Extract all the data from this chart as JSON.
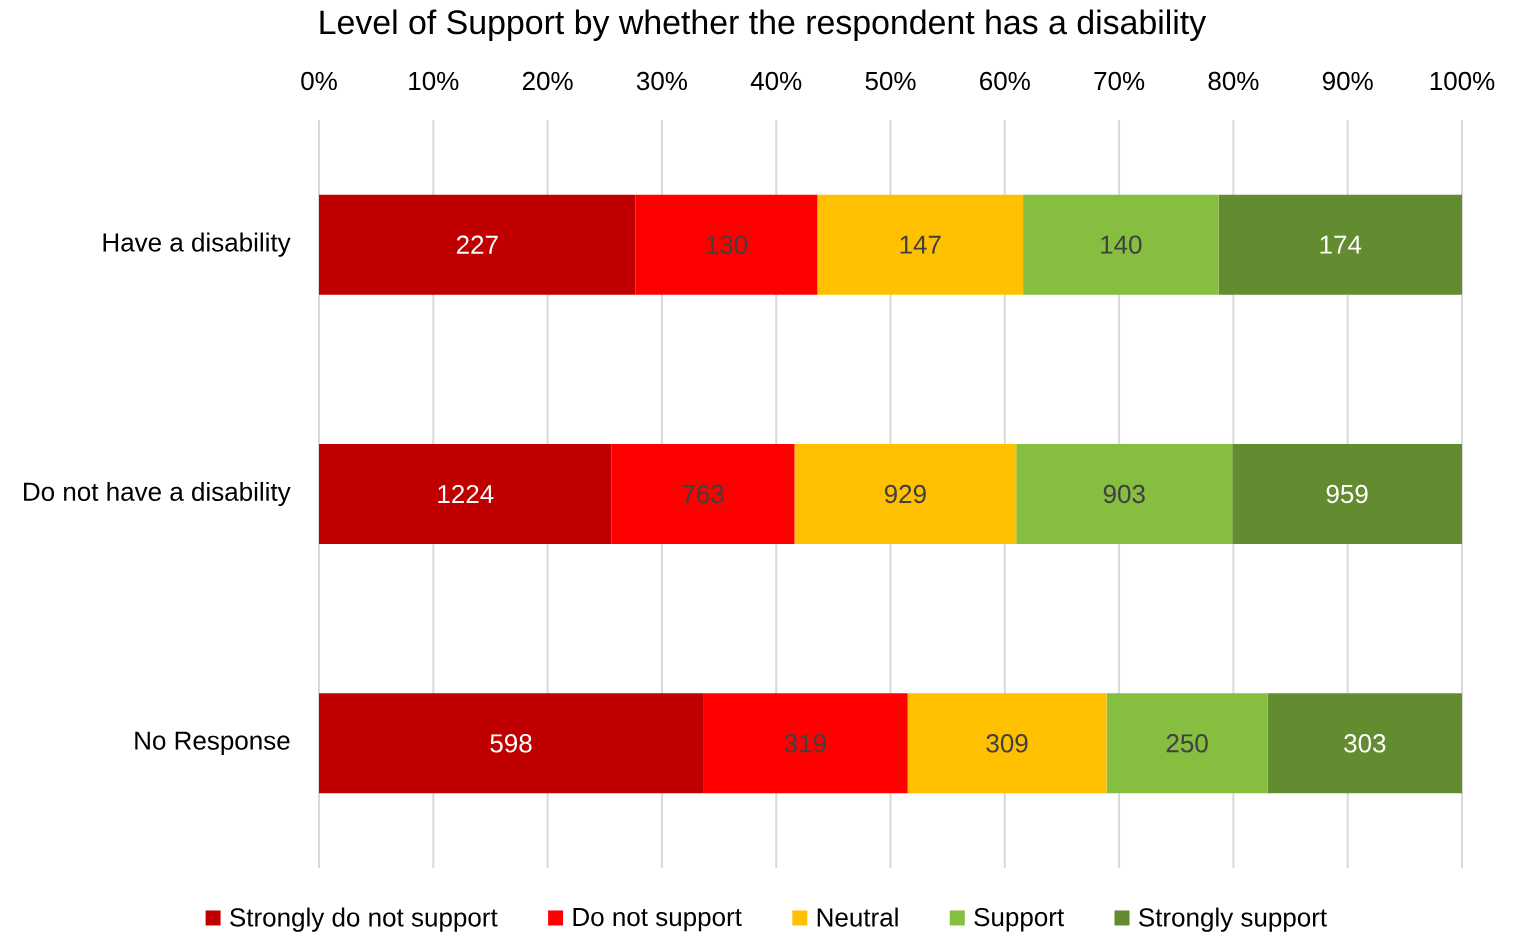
{
  "chart_data": {
    "type": "bar",
    "orientation": "horizontal",
    "stacked": true,
    "title": "Level of Support by whether the respondent has a disability",
    "categories": [
      "Have a disability",
      "Do not have a disability",
      "No Response"
    ],
    "series": [
      {
        "name": "Strongly do not support",
        "color": "#C00000",
        "values": [
          27.7,
          25.6,
          33.6
        ]
      },
      {
        "name": "Do not support",
        "color": "#FF0000",
        "values": [
          15.9,
          16.0,
          17.9
        ]
      },
      {
        "name": "Neutral",
        "color": "#FFC000",
        "values": [
          18.0,
          19.4,
          17.4
        ]
      },
      {
        "name": "Support",
        "color": "#86BE3F",
        "values": [
          17.1,
          18.9,
          14.1
        ]
      },
      {
        "name": "Strongly support",
        "color": "#638C31",
        "values": [
          21.3,
          20.1,
          17.0
        ]
      }
    ],
    "annotations": [
      "227",
      "130",
      "147",
      "140",
      "174",
      "1224",
      "763",
      "929",
      "903",
      "959",
      "598",
      "319",
      "309",
      "250",
      "303"
    ],
    "xlim": [
      0,
      100
    ],
    "xticks": [
      {
        "value": 0,
        "label": "0%"
      },
      {
        "value": 10,
        "label": "10%"
      },
      {
        "value": 20,
        "label": "20%"
      },
      {
        "value": 30,
        "label": "30%"
      },
      {
        "value": 40,
        "label": "40%"
      },
      {
        "value": 50,
        "label": "50%"
      },
      {
        "value": 60,
        "label": "60%"
      },
      {
        "value": 70,
        "label": "70%"
      },
      {
        "value": 80,
        "label": "80%"
      },
      {
        "value": 90,
        "label": "90%"
      },
      {
        "value": 100,
        "label": "100%"
      }
    ],
    "grid": "x",
    "legend": "bottom"
  }
}
